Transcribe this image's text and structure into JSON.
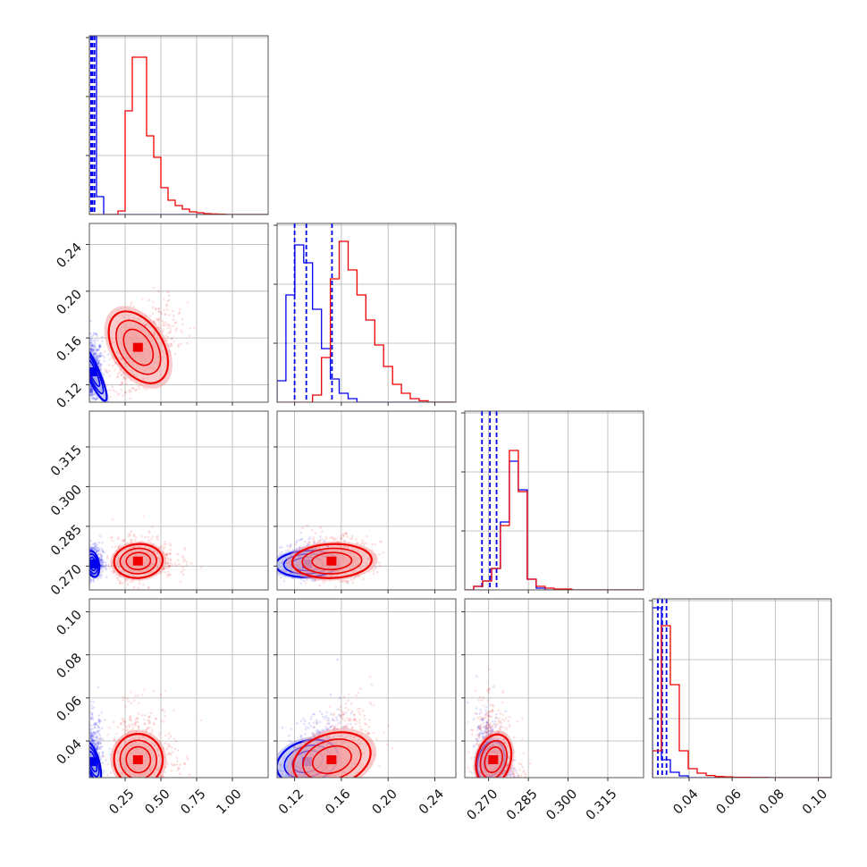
{
  "colors": {
    "blue": "#0000ee",
    "red": "#ee0000",
    "blue_fill": "#9fa6f0",
    "red_fill": "#f3a3a3",
    "grid": "#b0b0b0",
    "frame": "#555555"
  },
  "chart_data": {
    "type": "corner",
    "grid": true,
    "parameters": [
      {
        "range": [
          0.0,
          1.25
        ],
        "ticks": [
          0.25,
          0.5,
          0.75,
          1.0
        ],
        "tick_labels": [
          "0.25",
          "0.50",
          "0.75",
          "1.00"
        ]
      },
      {
        "range": [
          0.105,
          0.258
        ],
        "ticks": [
          0.12,
          0.16,
          0.2,
          0.24
        ],
        "tick_labels": [
          "0.12",
          "0.16",
          "0.20",
          "0.24"
        ]
      },
      {
        "range": [
          0.261,
          0.3285
        ],
        "ticks": [
          0.27,
          0.285,
          0.3,
          0.315
        ],
        "tick_labels": [
          "0.270",
          "0.285",
          "0.300",
          "0.315"
        ]
      },
      {
        "range": [
          0.023,
          0.106
        ],
        "ticks": [
          0.04,
          0.06,
          0.08,
          0.1
        ],
        "tick_labels": [
          "0.04",
          "0.06",
          "0.08",
          "0.10"
        ]
      }
    ],
    "series": [
      {
        "color": "blue",
        "marginals": [
          {
            "bin_start": 0.0,
            "bin_width": 0.05,
            "counts": [
              1.0,
              0.1,
              0.0,
              0.0,
              0.0,
              0.0,
              0.0,
              0.0,
              0.0,
              0.0,
              0.0,
              0.0,
              0.0,
              0.0,
              0.0,
              0.0,
              0.0,
              0.0,
              0.0,
              0.0,
              0.0,
              0.0,
              0.0,
              0.0,
              0.0
            ],
            "quantiles": [
              0.012,
              0.022,
              0.036
            ]
          },
          {
            "bin_start": 0.105,
            "bin_width": 0.0076,
            "counts": [
              0.12,
              0.6,
              0.88,
              0.78,
              0.52,
              0.3,
              0.13,
              0.05,
              0.02,
              0.0,
              0.0,
              0.0,
              0.0,
              0.0,
              0.0,
              0.0,
              0.0,
              0.0,
              0.0,
              0.0
            ],
            "quantiles": [
              0.12,
              0.13,
              0.152
            ]
          },
          {
            "bin_start": 0.261,
            "bin_width": 0.00337,
            "counts": [
              0.0,
              0.02,
              0.05,
              0.12,
              0.38,
              0.72,
              0.56,
              0.06,
              0.01,
              0.0,
              0.0,
              0.0,
              0.0,
              0.0,
              0.0,
              0.0,
              0.0,
              0.0,
              0.0,
              0.0
            ],
            "quantiles": [
              0.2675,
              0.2705,
              0.273
            ]
          },
          {
            "bin_start": 0.023,
            "bin_width": 0.00415,
            "counts": [
              0.95,
              0.1,
              0.03,
              0.01,
              0.0,
              0.0,
              0.0,
              0.0,
              0.0,
              0.0,
              0.0,
              0.0,
              0.0,
              0.0,
              0.0,
              0.0,
              0.0,
              0.0,
              0.0,
              0.0
            ],
            "quantiles": [
              0.0255,
              0.0275,
              0.0295
            ]
          }
        ],
        "centers": [
          0.02,
          0.131,
          0.2705,
          0.029
        ],
        "sigmas": [
          0.022,
          0.0135,
          0.0025,
          0.0048
        ]
      },
      {
        "color": "red",
        "marginals": [
          {
            "bin_start": 0.0,
            "bin_width": 0.05,
            "counts": [
              0.0,
              0.0,
              0.0,
              0.0,
              0.02,
              0.58,
              0.88,
              0.88,
              0.44,
              0.32,
              0.15,
              0.08,
              0.05,
              0.03,
              0.015,
              0.01,
              0.005,
              0.003,
              0.002,
              0.0,
              0.0,
              0.0,
              0.0,
              0.0,
              0.0
            ],
            "quantiles": []
          },
          {
            "bin_start": 0.105,
            "bin_width": 0.0076,
            "counts": [
              0.0,
              0.0,
              0.0,
              0.0,
              0.04,
              0.25,
              0.69,
              0.9,
              0.74,
              0.6,
              0.46,
              0.32,
              0.2,
              0.1,
              0.05,
              0.02,
              0.008,
              0.0,
              0.0,
              0.0
            ],
            "quantiles": []
          },
          {
            "bin_start": 0.261,
            "bin_width": 0.00337,
            "counts": [
              0.0,
              0.02,
              0.05,
              0.12,
              0.36,
              0.78,
              0.55,
              0.06,
              0.02,
              0.01,
              0.005,
              0.005,
              0.0,
              0.0,
              0.0,
              0.0,
              0.0,
              0.0,
              0.0,
              0.0
            ],
            "quantiles": []
          },
          {
            "bin_start": 0.023,
            "bin_width": 0.00415,
            "counts": [
              0.15,
              0.85,
              0.52,
              0.15,
              0.05,
              0.025,
              0.012,
              0.006,
              0.004,
              0.002,
              0.002,
              0.001,
              0.001,
              0.0,
              0.0,
              0.0,
              0.0,
              0.0,
              0.0,
              0.0
            ],
            "quantiles": []
          }
        ],
        "centers": [
          0.33,
          0.152,
          0.2715,
          0.0295
        ],
        "sigmas": [
          0.085,
          0.017,
          0.0032,
          0.006
        ]
      }
    ]
  }
}
